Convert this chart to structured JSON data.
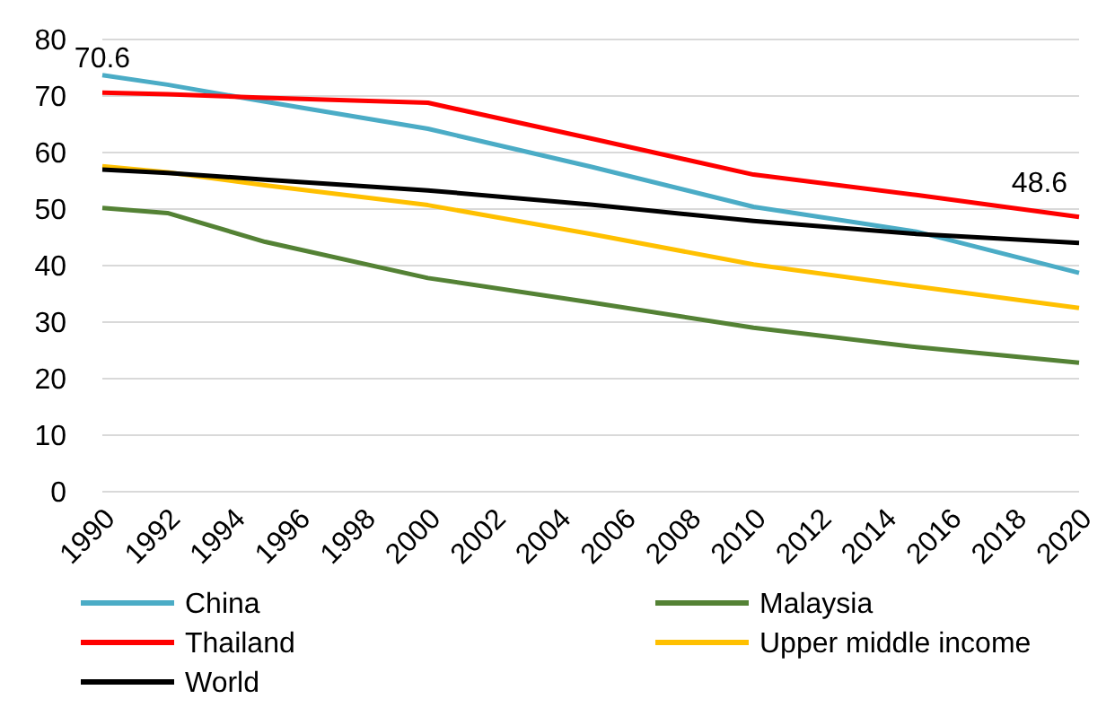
{
  "chart_data": {
    "type": "line",
    "x": [
      1990,
      1992,
      1995,
      2000,
      2005,
      2010,
      2015,
      2020
    ],
    "series": [
      {
        "name": "China",
        "color": "#4bacc6",
        "values": [
          73.7,
          72.0,
          69.0,
          64.2,
          57.5,
          50.4,
          46.0,
          38.7
        ]
      },
      {
        "name": "Malaysia",
        "color": "#548235",
        "values": [
          50.2,
          49.3,
          44.2,
          37.8,
          33.5,
          29.0,
          25.6,
          22.8
        ]
      },
      {
        "name": "Thailand",
        "color": "#ff0000",
        "values": [
          70.6,
          70.3,
          69.7,
          68.8,
          62.5,
          56.1,
          52.5,
          48.6
        ]
      },
      {
        "name": "Upper middle income",
        "color": "#ffc000",
        "values": [
          57.6,
          56.5,
          54.2,
          50.7,
          45.6,
          40.2,
          36.3,
          32.5
        ]
      },
      {
        "name": "World",
        "color": "#000000",
        "values": [
          57.0,
          56.4,
          55.2,
          53.3,
          50.8,
          47.9,
          45.6,
          44.0
        ]
      }
    ],
    "xlim": [
      1990,
      2020
    ],
    "xticks": [
      1990,
      1992,
      1994,
      1996,
      1998,
      2000,
      2002,
      2004,
      2006,
      2008,
      2010,
      2012,
      2014,
      2016,
      2018,
      2020
    ],
    "ylim": [
      0,
      80
    ],
    "yticks": [
      0,
      10,
      20,
      30,
      40,
      50,
      60,
      70,
      80
    ],
    "grid": "y",
    "legend": "bottom",
    "marker": "none",
    "line_style": "solid",
    "annotations": [
      {
        "text": "70.6",
        "x": 1990,
        "y": 70.6
      },
      {
        "text": "48.6",
        "x": 2020,
        "y": 48.6
      }
    ]
  }
}
